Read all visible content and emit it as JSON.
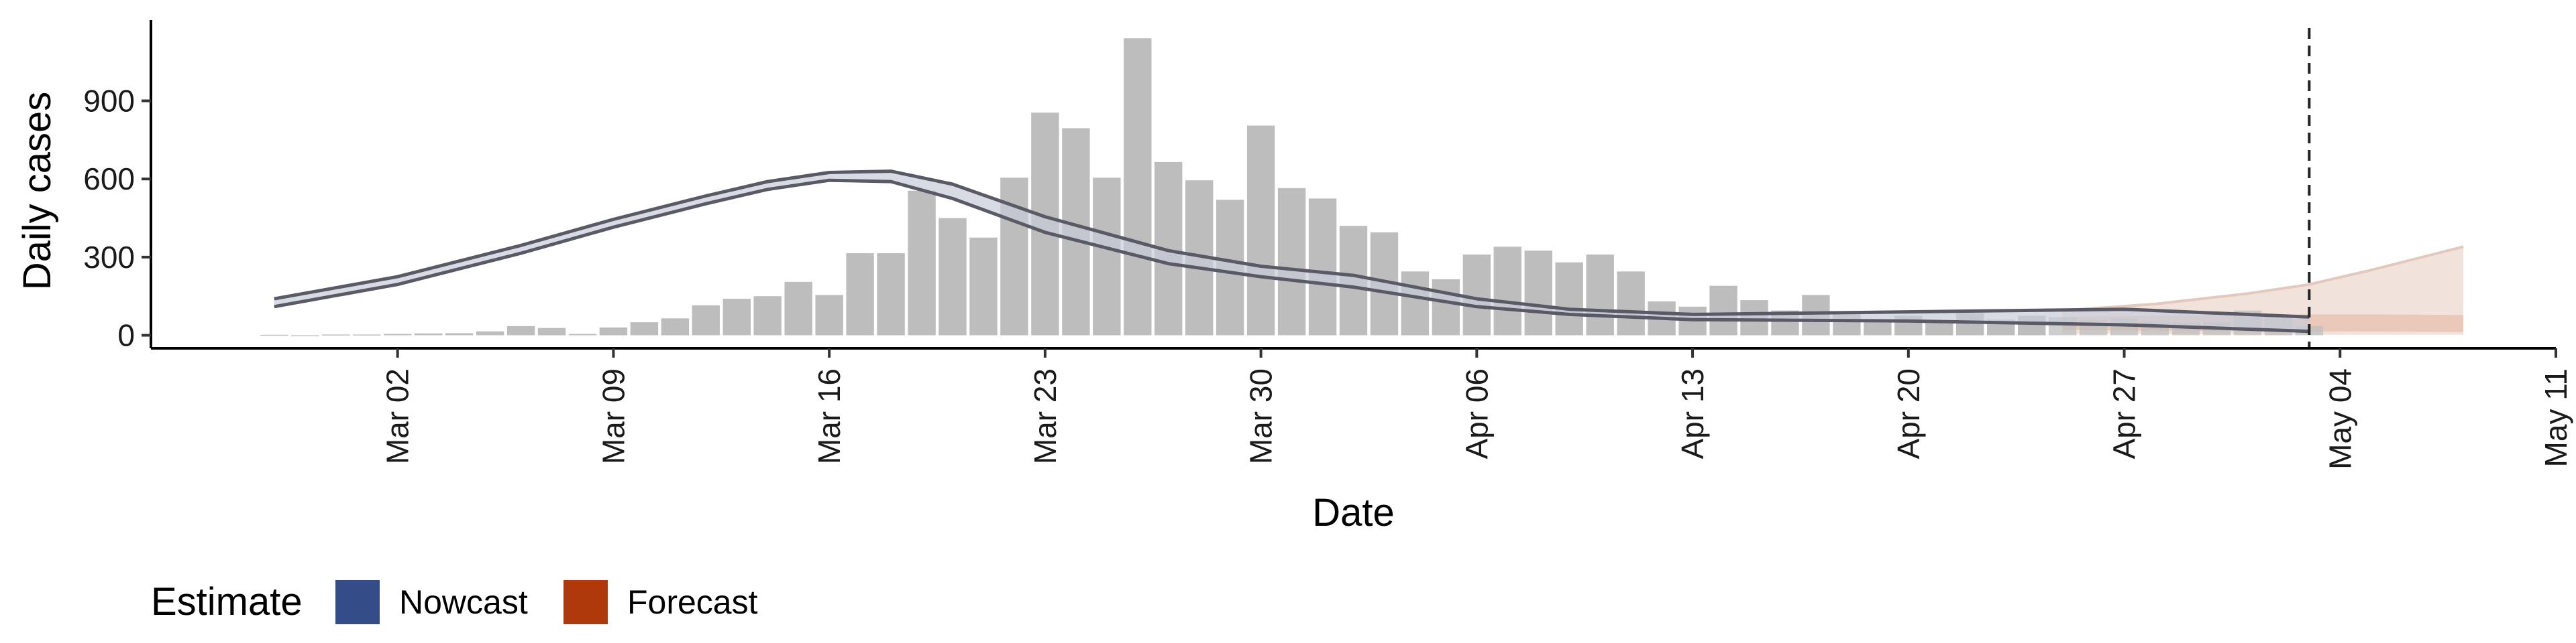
{
  "chart_data": {
    "type": "bar",
    "xlabel": "Date",
    "ylabel": "Daily cases",
    "x_ticks": [
      "Mar 02",
      "Mar 09",
      "Mar 16",
      "Mar 23",
      "Mar 30",
      "Apr 06",
      "Apr 13",
      "Apr 20",
      "Apr 27",
      "May 04",
      "May 11"
    ],
    "y_ticks": [
      "0",
      "300",
      "600",
      "900"
    ],
    "ylim": [
      -50,
      1210
    ],
    "xlim": [
      "2020-02-23",
      "2020-05-11"
    ],
    "grid": false,
    "legend": {
      "title": "Estimate",
      "placement": "bottom-left",
      "items": [
        {
          "label": "Nowcast",
          "color": "#344c87"
        },
        {
          "label": "Forecast",
          "color": "#b0390b"
        }
      ]
    },
    "reference_line": {
      "date": "2020-05-03",
      "style": "dashed"
    },
    "colors": {
      "bars": "#bdbdbd",
      "nowcast_line": "#5a5a66",
      "nowcast_band": "#c7ccd8",
      "forecast_band": "#f0ddd6",
      "forecast_inner": "#e7c3b3"
    },
    "bars": {
      "dates": [
        "2020-02-27",
        "2020-02-28",
        "2020-02-29",
        "2020-03-01",
        "2020-03-02",
        "2020-03-03",
        "2020-03-04",
        "2020-03-05",
        "2020-03-06",
        "2020-03-07",
        "2020-03-08",
        "2020-03-09",
        "2020-03-10",
        "2020-03-11",
        "2020-03-12",
        "2020-03-13",
        "2020-03-14",
        "2020-03-15",
        "2020-03-16",
        "2020-03-17",
        "2020-03-18",
        "2020-03-19",
        "2020-03-20",
        "2020-03-21",
        "2020-03-22",
        "2020-03-23",
        "2020-03-24",
        "2020-03-25",
        "2020-03-26",
        "2020-03-27",
        "2020-03-28",
        "2020-03-29",
        "2020-03-30",
        "2020-03-31",
        "2020-04-01",
        "2020-04-02",
        "2020-04-03",
        "2020-04-04",
        "2020-04-05",
        "2020-04-06",
        "2020-04-07",
        "2020-04-08",
        "2020-04-09",
        "2020-04-10",
        "2020-04-11",
        "2020-04-12",
        "2020-04-13",
        "2020-04-14",
        "2020-04-15",
        "2020-04-16",
        "2020-04-17",
        "2020-04-18",
        "2020-04-19",
        "2020-04-20",
        "2020-04-21",
        "2020-04-22",
        "2020-04-23",
        "2020-04-24",
        "2020-04-25",
        "2020-04-26",
        "2020-04-27",
        "2020-04-28",
        "2020-04-29",
        "2020-04-30",
        "2020-05-01",
        "2020-05-02",
        "2020-05-03"
      ],
      "values": [
        2,
        0,
        3,
        3,
        5,
        7,
        8,
        15,
        35,
        28,
        5,
        30,
        50,
        65,
        115,
        140,
        150,
        205,
        155,
        315,
        315,
        555,
        450,
        375,
        605,
        855,
        795,
        605,
        1140,
        665,
        595,
        520,
        805,
        565,
        525,
        420,
        395,
        245,
        215,
        310,
        340,
        325,
        280,
        310,
        245,
        130,
        110,
        190,
        135,
        95,
        155,
        85,
        60,
        75,
        55,
        85,
        60,
        75,
        70,
        60,
        65,
        55,
        50,
        50,
        95,
        75,
        35
      ]
    },
    "nowcast": {
      "dates": [
        "2020-02-27",
        "2020-03-02",
        "2020-03-06",
        "2020-03-09",
        "2020-03-12",
        "2020-03-14",
        "2020-03-16",
        "2020-03-18",
        "2020-03-20",
        "2020-03-23",
        "2020-03-27",
        "2020-03-30",
        "2020-04-02",
        "2020-04-06",
        "2020-04-09",
        "2020-04-13",
        "2020-04-20",
        "2020-04-27",
        "2020-05-03"
      ],
      "median": [
        125,
        210,
        330,
        430,
        520,
        575,
        610,
        610,
        555,
        425,
        300,
        245,
        210,
        125,
        90,
        70,
        70,
        65,
        40
      ],
      "lower": [
        110,
        195,
        315,
        415,
        505,
        560,
        595,
        590,
        525,
        395,
        275,
        225,
        185,
        110,
        80,
        60,
        55,
        40,
        15
      ],
      "upper": [
        140,
        225,
        345,
        445,
        535,
        590,
        625,
        630,
        580,
        455,
        325,
        265,
        230,
        140,
        100,
        80,
        90,
        100,
        70
      ]
    },
    "forecast": {
      "dates": [
        "2020-04-25",
        "2020-04-28",
        "2020-05-01",
        "2020-05-03",
        "2020-05-05",
        "2020-05-08"
      ],
      "outer_lower": [
        5,
        5,
        3,
        2,
        2,
        2
      ],
      "outer_upper": [
        95,
        120,
        160,
        195,
        250,
        340
      ],
      "inner_lower": [
        20,
        18,
        15,
        15,
        14,
        12
      ],
      "inner_upper": [
        70,
        75,
        78,
        80,
        80,
        78
      ]
    }
  }
}
